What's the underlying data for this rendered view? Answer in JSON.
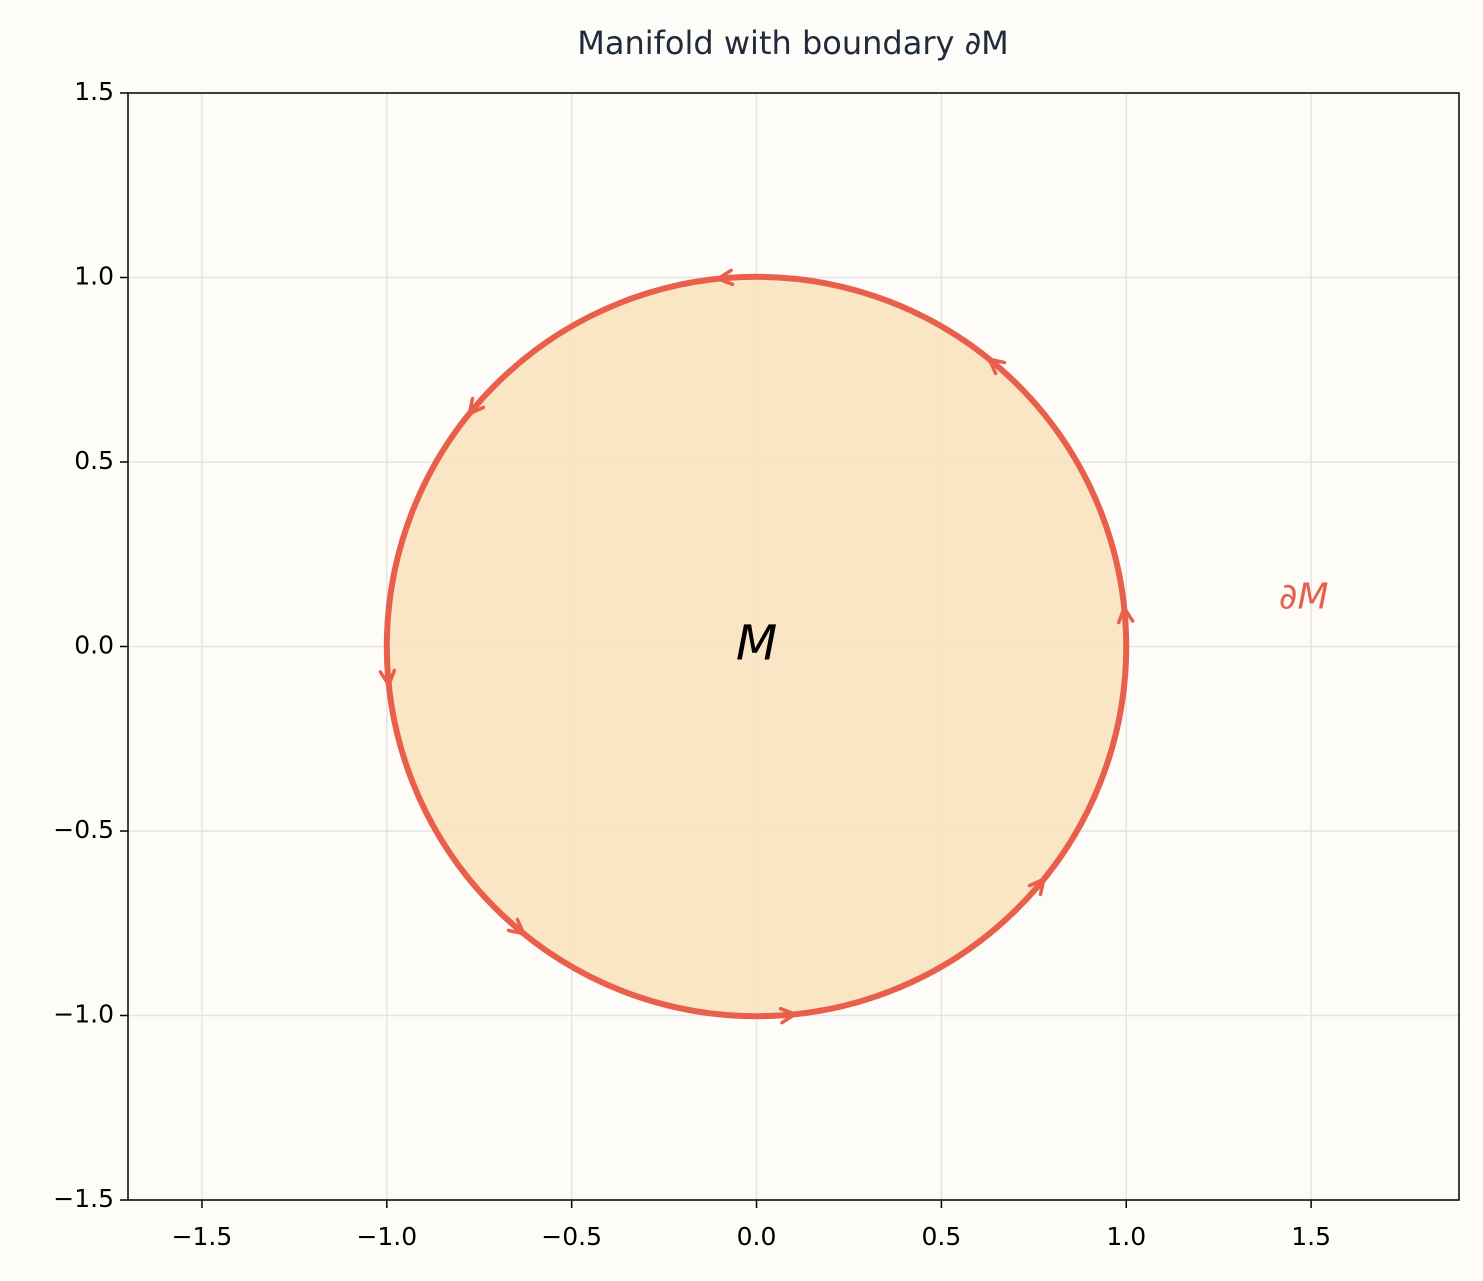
{
  "chart_data": {
    "type": "disk",
    "title": "Manifold with boundary ∂M",
    "center": [
      0,
      0
    ],
    "radius": 1,
    "fill_color": "#f9e2bf",
    "edge_color": "#e8604c",
    "annotations": [
      {
        "text": "M",
        "x": 0,
        "y": 0,
        "color": "#000000"
      },
      {
        "text": "∂M",
        "x": 1.48,
        "y": 0.13,
        "color": "#e8604c"
      }
    ],
    "xlim": [
      -1.7,
      1.9
    ],
    "ylim": [
      -1.5,
      1.5
    ],
    "xticks": [
      {
        "value": -1.5,
        "label": "−1.5"
      },
      {
        "value": -1.0,
        "label": "−1.0"
      },
      {
        "value": -0.5,
        "label": "−0.5"
      },
      {
        "value": 0,
        "label": "0.0"
      },
      0.5,
      {
        "value": 1.0,
        "label": "1.0"
      },
      1.5
    ],
    "yticks": [
      {
        "value": -1.5,
        "label": "−1.5"
      },
      {
        "value": -1.0,
        "label": "−1.0"
      },
      {
        "value": -0.5,
        "label": "−0.5"
      },
      {
        "value": 0,
        "label": "0.0"
      },
      0.5,
      {
        "value": 1.0,
        "label": "1.0"
      },
      1.5
    ],
    "grid": true
  }
}
